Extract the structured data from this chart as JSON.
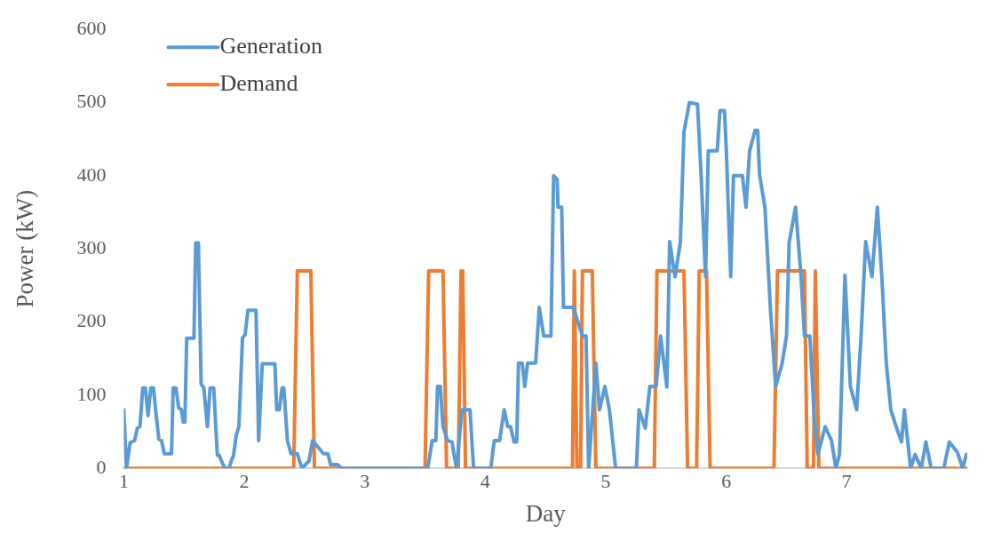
{
  "chart_data": {
    "type": "line",
    "xlabel": "Day",
    "ylabel": "Power (kW)",
    "xlim": [
      1,
      8
    ],
    "xticks": [
      1,
      2,
      3,
      4,
      5,
      6,
      7
    ],
    "ylim": [
      0,
      600
    ],
    "yticks": [
      0,
      100,
      200,
      300,
      400,
      500,
      600
    ],
    "grid": false,
    "legend": "top left",
    "marker": "none",
    "line_style": "solid",
    "series": [
      {
        "name": "Generation",
        "color": "#5b9bd5",
        "x": [
          1.0,
          1.022,
          1.052,
          1.09,
          1.112,
          1.134,
          1.157,
          1.179,
          1.201,
          1.224,
          1.246,
          1.269,
          1.291,
          1.313,
          1.336,
          1.396,
          1.41,
          1.433,
          1.455,
          1.478,
          1.493,
          1.507,
          1.522,
          1.582,
          1.597,
          1.619,
          1.642,
          1.664,
          1.694,
          1.716,
          1.746,
          1.776,
          1.791,
          1.821,
          1.843,
          1.873,
          1.896,
          1.91,
          1.933,
          1.955,
          1.985,
          2.007,
          2.03,
          2.097,
          2.119,
          2.149,
          2.254,
          2.269,
          2.291,
          2.313,
          2.328,
          2.358,
          2.388,
          2.44,
          2.478,
          2.537,
          2.567,
          2.657,
          2.694,
          2.716,
          2.776,
          2.806,
          3.522,
          3.56,
          3.59,
          3.604,
          3.627,
          3.649,
          3.687,
          3.724,
          3.739,
          3.761,
          3.806,
          3.873,
          3.903,
          4.045,
          4.075,
          4.119,
          4.157,
          4.187,
          4.209,
          4.239,
          4.261,
          4.276,
          4.306,
          4.328,
          4.351,
          4.418,
          4.448,
          4.485,
          4.545,
          4.567,
          4.597,
          4.604,
          4.634,
          4.649,
          4.731,
          4.806,
          4.836,
          4.858,
          4.918,
          4.948,
          4.993,
          5.03,
          5.082,
          5.254,
          5.276,
          5.328,
          5.366,
          5.418,
          5.455,
          5.507,
          5.53,
          5.575,
          5.619,
          5.649,
          5.694,
          5.761,
          5.791,
          5.828,
          5.851,
          5.925,
          5.948,
          5.985,
          6.0,
          6.037,
          6.06,
          6.134,
          6.164,
          6.194,
          6.239,
          6.261,
          6.276,
          6.321,
          6.366,
          6.41,
          6.463,
          6.5,
          6.522,
          6.575,
          6.619,
          6.649,
          6.694,
          6.731,
          6.761,
          6.821,
          6.873,
          6.91,
          6.94,
          6.985,
          7.03,
          7.082,
          7.119,
          7.157,
          7.209,
          7.254,
          7.291,
          7.328,
          7.366,
          7.41,
          7.455,
          7.478,
          7.53,
          7.567,
          7.619,
          7.657,
          7.701,
          7.806,
          7.851,
          7.918,
          7.963,
          7.993
        ],
        "values": [
          80,
          0,
          35,
          38,
          55,
          57,
          110,
          110,
          72,
          110,
          110,
          72,
          40,
          38,
          20,
          20,
          110,
          110,
          83,
          80,
          63,
          63,
          178,
          178,
          308,
          308,
          115,
          110,
          57,
          110,
          110,
          18,
          18,
          6,
          0,
          0,
          12,
          17,
          45,
          57,
          178,
          183,
          216,
          216,
          38,
          143,
          143,
          80,
          80,
          110,
          110,
          38,
          20,
          20,
          0,
          10,
          38,
          20,
          20,
          5,
          5,
          0,
          0,
          38,
          38,
          112,
          112,
          57,
          38,
          36,
          20,
          0,
          80,
          80,
          0,
          0,
          38,
          38,
          80,
          57,
          57,
          36,
          36,
          144,
          144,
          112,
          144,
          144,
          220,
          181,
          181,
          400,
          395,
          357,
          357,
          220,
          220,
          181,
          181,
          0,
          144,
          80,
          112,
          80,
          0,
          0,
          80,
          55,
          112,
          112,
          181,
          111,
          310,
          262,
          309,
          460,
          500,
          498,
          402,
          262,
          434,
          434,
          489,
          489,
          437,
          262,
          400,
          400,
          357,
          434,
          462,
          462,
          402,
          357,
          220,
          112,
          143,
          181,
          309,
          357,
          266,
          181,
          181,
          68,
          19,
          57,
          38,
          0,
          19,
          264,
          112,
          80,
          181,
          310,
          262,
          357,
          262,
          144,
          80,
          57,
          36,
          80,
          0,
          19,
          0,
          36,
          0,
          0,
          36,
          22,
          0,
          19
        ]
      },
      {
        "name": "Demand",
        "color": "#ed7d31",
        "x": [
          1,
          2.41,
          2.44,
          2.552,
          2.582,
          3.5,
          3.53,
          3.649,
          3.679,
          3.776,
          3.799,
          3.813,
          3.836,
          4.724,
          4.739,
          4.761,
          4.791,
          4.806,
          4.888,
          4.918,
          5.403,
          5.425,
          5.649,
          5.679,
          5.754,
          5.776,
          5.836,
          5.866,
          6.396,
          6.425,
          6.649,
          6.672,
          6.724,
          6.739,
          6.769,
          7.993
        ],
        "values": [
          0,
          0,
          270,
          270,
          0,
          0,
          270,
          270,
          0,
          0,
          270,
          270,
          0,
          0,
          270,
          0,
          0,
          270,
          270,
          0,
          0,
          270,
          270,
          0,
          0,
          270,
          270,
          0,
          0,
          270,
          270,
          0,
          0,
          270,
          0,
          0
        ]
      }
    ]
  }
}
